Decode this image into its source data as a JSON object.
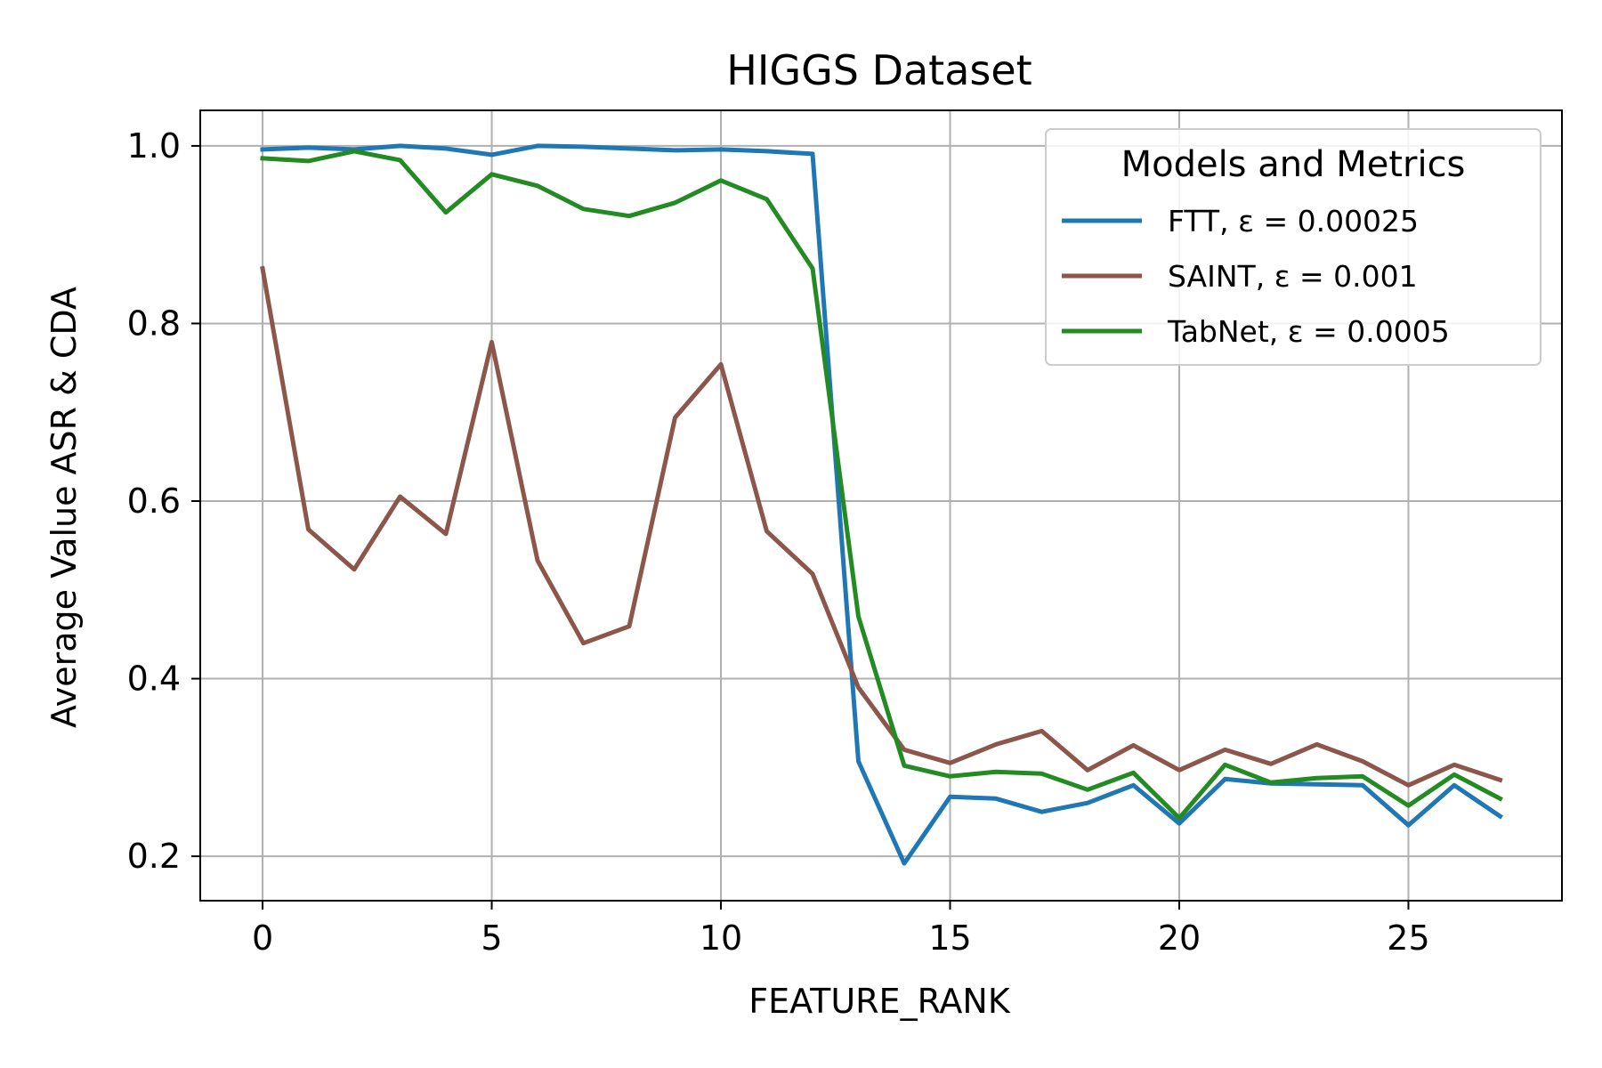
{
  "chart_data": {
    "type": "line",
    "title": "HIGGS Dataset",
    "xlabel": "FEATURE_RANK",
    "ylabel": "Average Value ASR & CDA",
    "xlim": [
      -1.36,
      28.35
    ],
    "ylim": [
      0.15,
      1.04
    ],
    "xticks": [
      0,
      5,
      10,
      15,
      20,
      25
    ],
    "yticks": [
      0.2,
      0.4,
      0.6,
      0.8,
      1.0
    ],
    "xtick_labels": [
      "0",
      "5",
      "10",
      "15",
      "20",
      "25"
    ],
    "ytick_labels": [
      "0.2",
      "0.4",
      "0.6",
      "0.8",
      "1.0"
    ],
    "grid": true,
    "legend": {
      "title": "Models and Metrics",
      "placement": "top-right"
    },
    "x": [
      0,
      1,
      2,
      3,
      4,
      5,
      6,
      7,
      8,
      9,
      10,
      11,
      12,
      13,
      14,
      15,
      16,
      17,
      18,
      19,
      20,
      21,
      22,
      23,
      24,
      25,
      26,
      27
    ],
    "series": [
      {
        "name": "FTT, ε = 0.00025",
        "color": "#1f77b4",
        "values": [
          0.996,
          0.998,
          0.996,
          1.0,
          0.997,
          0.99,
          1.0,
          0.999,
          0.997,
          0.995,
          0.996,
          0.994,
          0.991,
          0.307,
          0.192,
          0.267,
          0.265,
          0.25,
          0.26,
          0.28,
          0.237,
          0.287,
          0.282,
          0.281,
          0.28,
          0.235,
          0.28,
          0.245
        ]
      },
      {
        "name": "SAINT, ε = 0.001",
        "color": "#8c564b",
        "values": [
          0.862,
          0.568,
          0.523,
          0.605,
          0.563,
          0.779,
          0.533,
          0.44,
          0.459,
          0.694,
          0.754,
          0.566,
          0.518,
          0.39,
          0.32,
          0.305,
          0.326,
          0.341,
          0.297,
          0.325,
          0.297,
          0.32,
          0.304,
          0.326,
          0.307,
          0.28,
          0.303,
          0.286
        ]
      },
      {
        "name": "TabNet, ε = 0.0005",
        "color": "#228b22",
        "values": [
          0.986,
          0.983,
          0.994,
          0.984,
          0.925,
          0.968,
          0.955,
          0.929,
          0.921,
          0.936,
          0.961,
          0.94,
          0.862,
          0.47,
          0.302,
          0.29,
          0.295,
          0.293,
          0.275,
          0.294,
          0.243,
          0.303,
          0.283,
          0.288,
          0.29,
          0.257,
          0.292,
          0.265
        ]
      }
    ]
  }
}
